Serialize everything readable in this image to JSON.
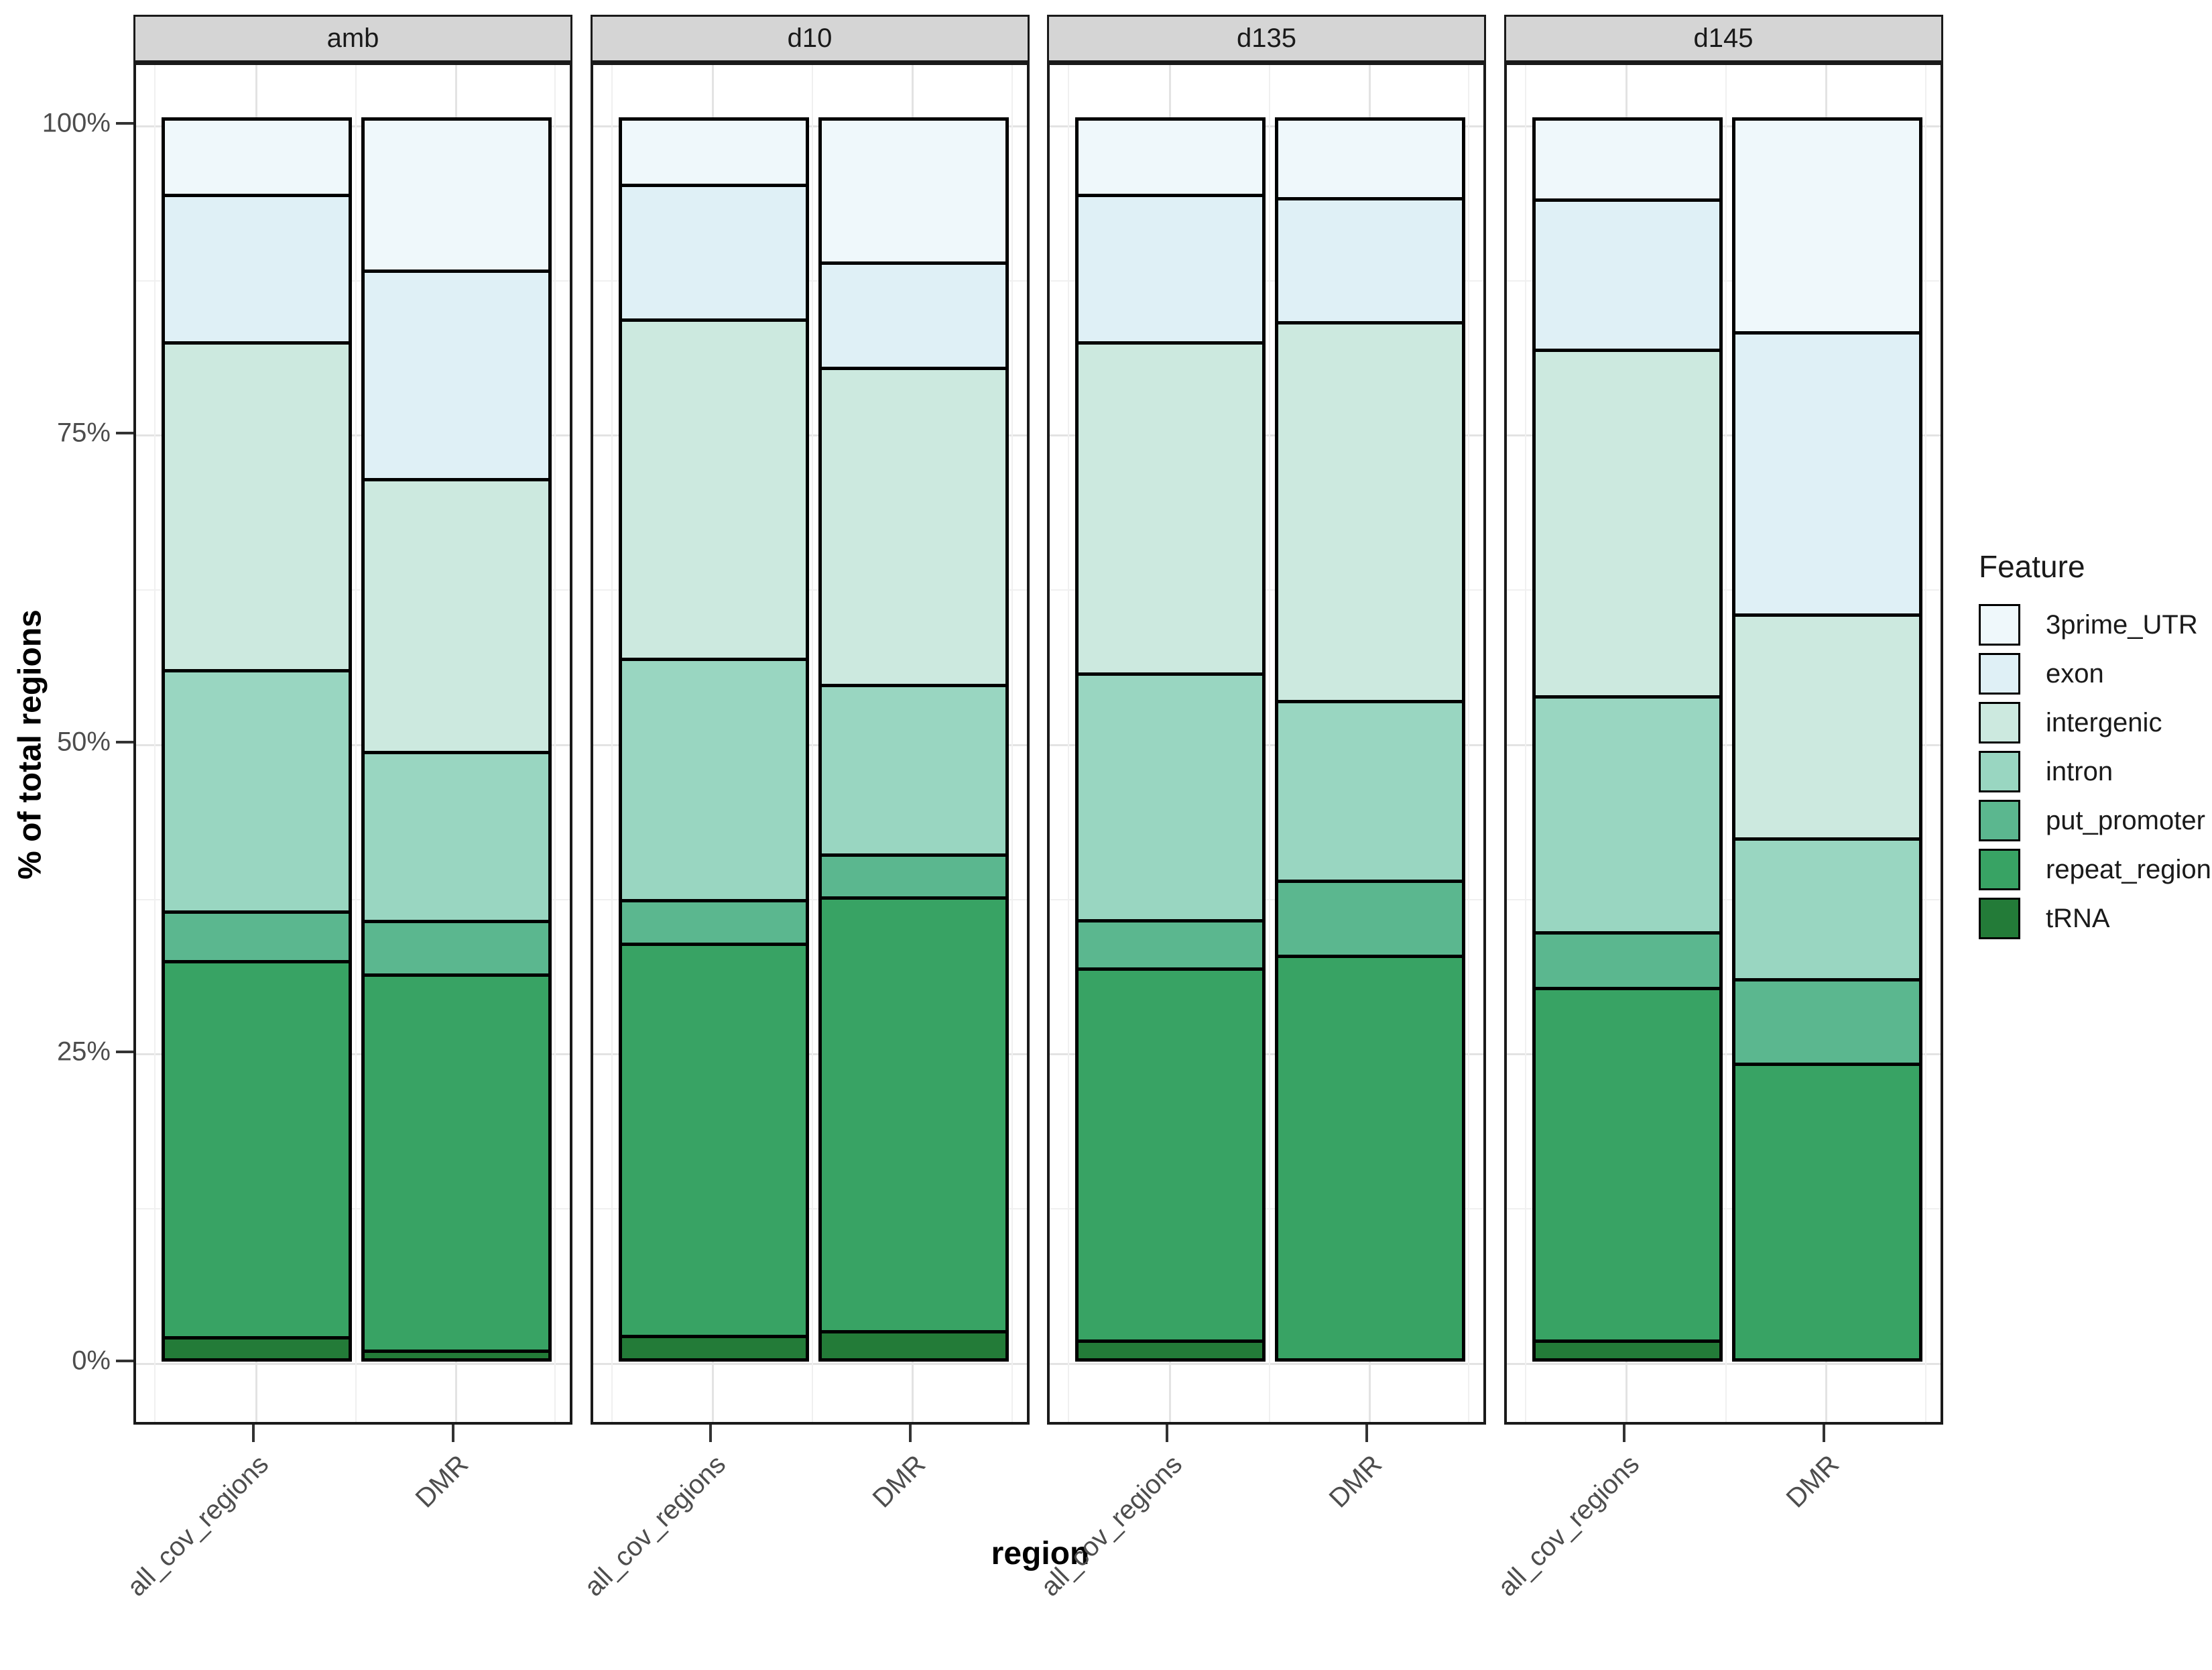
{
  "chart_data": {
    "type": "bar",
    "subtype": "stacked-percent-faceted",
    "ylabel": "% of total regions",
    "xlabel": "region",
    "legend_title": "Feature",
    "yticks": [
      "0%",
      "25%",
      "50%",
      "75%",
      "100%"
    ],
    "ylim": [
      0,
      100
    ],
    "grid": "major-and-minor",
    "legend_position": "right",
    "features": [
      "3prime_UTR",
      "exon",
      "intergenic",
      "intron",
      "put_promoter",
      "repeat_region",
      "tRNA"
    ],
    "colors": [
      "#EFF8FB",
      "#DFF0F6",
      "#CCE9DF",
      "#99D6C1",
      "#5BB78F",
      "#38A364",
      "#237B38"
    ],
    "categories": [
      "all_cov_regions",
      "DMR"
    ],
    "facets": [
      {
        "label": "amb",
        "bars": [
          {
            "category": "all_cov_regions",
            "values": [
              5.9,
              11.9,
              26.5,
              19.5,
              4.0,
              30.4,
              1.8
            ]
          },
          {
            "category": "DMR",
            "values": [
              12.0,
              16.9,
              22.0,
              13.7,
              4.3,
              30.4,
              0.7
            ]
          }
        ]
      },
      {
        "label": "d10",
        "bars": [
          {
            "category": "all_cov_regions",
            "values": [
              5.1,
              10.9,
              27.4,
              19.5,
              3.5,
              31.7,
              1.9
            ]
          },
          {
            "category": "DMR",
            "values": [
              11.4,
              8.5,
              25.6,
              13.7,
              3.5,
              35.0,
              2.3
            ]
          }
        ]
      },
      {
        "label": "d135",
        "bars": [
          {
            "category": "all_cov_regions",
            "values": [
              5.9,
              11.9,
              26.8,
              19.9,
              3.9,
              30.1,
              1.5
            ]
          },
          {
            "category": "DMR",
            "values": [
              6.2,
              10.0,
              30.6,
              14.5,
              6.1,
              32.6,
              0.0
            ]
          }
        ]
      },
      {
        "label": "d145",
        "bars": [
          {
            "category": "all_cov_regions",
            "values": [
              6.3,
              12.1,
              28.0,
              19.1,
              4.5,
              28.5,
              1.5
            ]
          },
          {
            "category": "DMR",
            "values": [
              17.0,
              22.8,
              18.1,
              11.4,
              6.8,
              23.9,
              0.0
            ]
          }
        ]
      }
    ]
  }
}
